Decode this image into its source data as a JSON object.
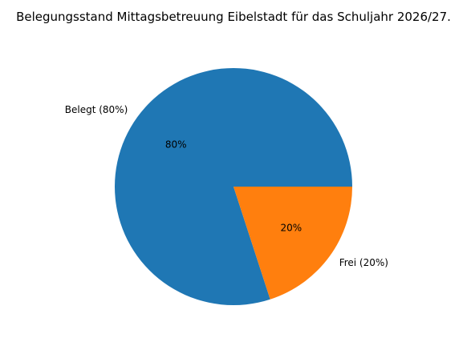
{
  "chart_data": {
    "type": "pie",
    "title": "Belegungsstand Mittagsbetreuung Eibelstadt für das Schuljahr 2026/27.",
    "slices": [
      {
        "label": "Belegt (80%)",
        "value": 80,
        "pct_label": "80%",
        "color": "#1f77b4"
      },
      {
        "label": "Frei (20%)",
        "value": 20,
        "pct_label": "20%",
        "color": "#ff7f0e"
      }
    ]
  }
}
